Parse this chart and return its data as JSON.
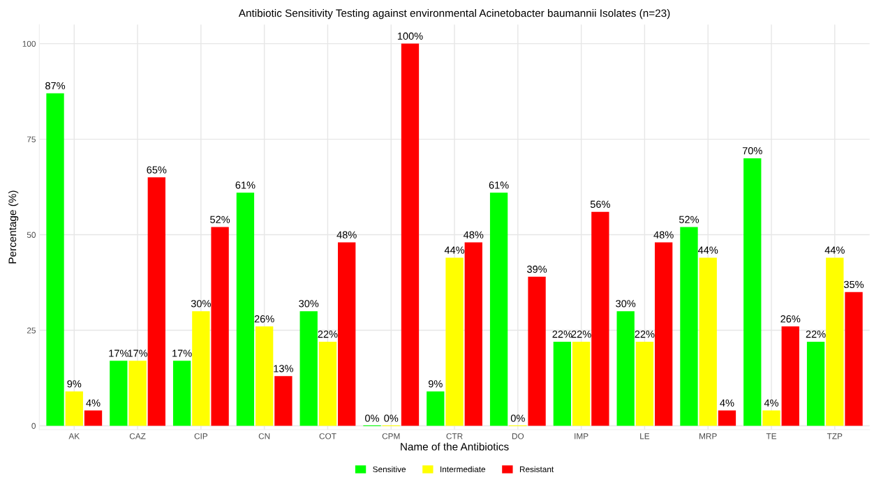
{
  "chart_data": {
    "type": "bar",
    "title": "Antibiotic Sensitivity Testing against environmental Acinetobacter baumannii Isolates (n=23)",
    "xlabel": "Name of the Antibiotics",
    "ylabel": "Percentage (%)",
    "categories": [
      "AK",
      "CAZ",
      "CIP",
      "CN",
      "COT",
      "CPM",
      "CTR",
      "DO",
      "IMP",
      "LE",
      "MRP",
      "TE",
      "TZP"
    ],
    "series": [
      {
        "name": "Sensitive",
        "color": "#00ff00",
        "values": [
          87,
          17,
          17,
          61,
          30,
          0,
          9,
          61,
          22,
          30,
          52,
          70,
          22
        ],
        "value_labels": [
          "87%",
          "17%",
          "17%",
          "61%",
          "30%",
          "0%",
          "9%",
          "61%",
          "22%",
          "30%",
          "52%",
          "70%",
          "22%"
        ]
      },
      {
        "name": "Intermediate",
        "color": "#ffff00",
        "values": [
          9,
          17,
          30,
          26,
          22,
          0,
          44,
          0,
          22,
          22,
          44,
          4,
          44
        ],
        "value_labels": [
          "9%",
          "17%",
          "30%",
          "26%",
          "22%",
          "0%",
          "44%",
          "0%",
          "22%",
          "22%",
          "44%",
          "4%",
          "44%"
        ]
      },
      {
        "name": "Resistant",
        "color": "#ff0000",
        "values": [
          4,
          65,
          52,
          13,
          48,
          100,
          48,
          39,
          56,
          48,
          4,
          26,
          35
        ],
        "value_labels": [
          "4%",
          "65%",
          "52%",
          "13%",
          "48%",
          "100%",
          "48%",
          "39%",
          "56%",
          "48%",
          "4%",
          "26%",
          "35%"
        ]
      }
    ],
    "ylim": [
      -1,
      105
    ],
    "yticks": [
      0,
      25,
      50,
      75,
      100
    ],
    "grid": true,
    "legend": "bottom"
  }
}
